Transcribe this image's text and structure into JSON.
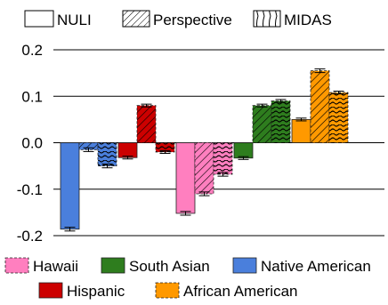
{
  "chart_data": {
    "type": "bar",
    "title": "",
    "xlabel": "",
    "ylabel": "",
    "ylim": [
      -0.2,
      0.2
    ],
    "yticks": [
      0.2,
      0.1,
      0.0,
      -0.1,
      -0.2
    ],
    "ytick_labels": [
      "0.2",
      "0.1",
      "0.0",
      "-0.1",
      "-0.2"
    ],
    "grid": false,
    "zero_line": true,
    "methods": [
      {
        "name": "NULI",
        "pattern": "none"
      },
      {
        "name": "Perspective",
        "pattern": "diagonal"
      },
      {
        "name": "MIDAS",
        "pattern": "wavy"
      }
    ],
    "groups": [
      {
        "name": "Native American",
        "color": "#4a7fdc",
        "values": [
          -0.186,
          -0.015,
          -0.05
        ],
        "errors": [
          0.004,
          0.004,
          0.004
        ]
      },
      {
        "name": "Hispanic",
        "color": "#cc0000",
        "values": [
          -0.032,
          0.08,
          -0.02
        ],
        "errors": [
          0.003,
          0.003,
          0.003
        ]
      },
      {
        "name": "Hawaii",
        "color": "#ff7fbf",
        "values": [
          -0.152,
          -0.11,
          -0.068
        ],
        "errors": [
          0.004,
          0.004,
          0.004
        ]
      },
      {
        "name": "South Asian",
        "color": "#2e7d1e",
        "values": [
          -0.033,
          0.08,
          0.09
        ],
        "errors": [
          0.003,
          0.003,
          0.003
        ]
      },
      {
        "name": "African American",
        "color": "#ff9900",
        "values": [
          0.05,
          0.155,
          0.108
        ],
        "errors": [
          0.003,
          0.004,
          0.003
        ]
      }
    ],
    "legend_position": "top (methods), bottom (groups)",
    "bottom_legend_order": [
      "Hawaii",
      "South Asian",
      "Native American",
      "Hispanic",
      "African American"
    ]
  }
}
